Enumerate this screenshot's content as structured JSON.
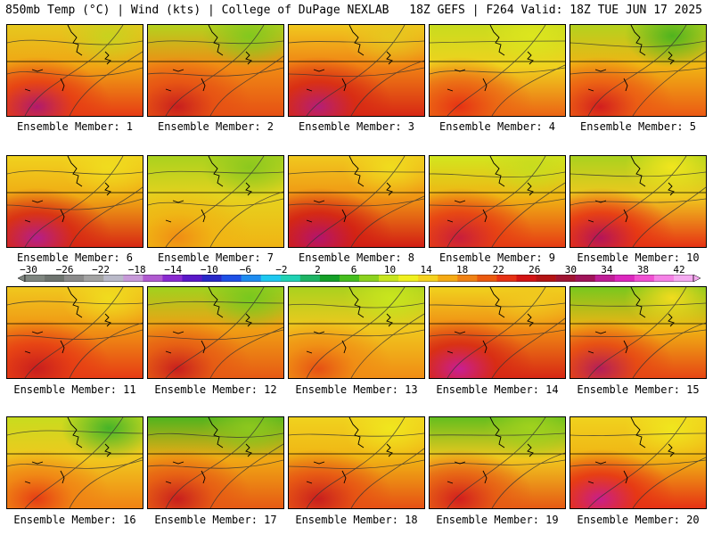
{
  "header": {
    "left": "850mb Temp (°C) | Wind (kts) | College of DuPage NEXLAB",
    "right": "18Z GEFS | F264 Valid: 18Z TUE JUN 17 2025"
  },
  "colorbar": {
    "labels": [
      "−30",
      "−26",
      "−22",
      "−18",
      "−14",
      "−10",
      "−6",
      "−2",
      "2",
      "6",
      "10",
      "14",
      "18",
      "22",
      "26",
      "30",
      "34",
      "38",
      "42"
    ],
    "colors": [
      "#7f8680",
      "#6e746f",
      "#8b8b8b",
      "#a3a3a3",
      "#b9b9c8",
      "#c79ad9",
      "#b05ad0",
      "#8a2bd0",
      "#5a18c8",
      "#2828c8",
      "#1e50e6",
      "#1e8cf0",
      "#1ec8f0",
      "#20d2b4",
      "#1eb464",
      "#14a028",
      "#46be1e",
      "#8cd21e",
      "#c8e61e",
      "#f0f01e",
      "#f5d21e",
      "#f5aa14",
      "#f08214",
      "#eb5a0f",
      "#e63214",
      "#d21414",
      "#b41414",
      "#a01432",
      "#a0145a",
      "#be1e96",
      "#dc28be",
      "#f050d2",
      "#f582e6",
      "#f5aaf0"
    ]
  },
  "panels": [
    {
      "caption": "Ensemble Member: 1",
      "bg": "#f0a514",
      "north": "#e6c81e",
      "south": "#e63c14",
      "hot": "#b01a6e",
      "cool": "#c8d21e"
    },
    {
      "caption": "Ensemble Member: 2",
      "bg": "#f08c14",
      "north": "#b4d21e",
      "south": "#e65014",
      "hot": "#c81e1e",
      "cool": "#82c81e"
    },
    {
      "caption": "Ensemble Member: 3",
      "bg": "#f08214",
      "north": "#f0c81e",
      "south": "#d72814",
      "hot": "#b41e78",
      "cool": "#e6c81e"
    },
    {
      "caption": "Ensemble Member: 4",
      "bg": "#f0d21e",
      "north": "#c8dc1e",
      "south": "#eb6414",
      "hot": "#e63214",
      "cool": "#dce61e"
    },
    {
      "caption": "Ensemble Member: 5",
      "bg": "#f0b414",
      "north": "#b4d21e",
      "south": "#eb5a14",
      "hot": "#d21e1e",
      "cool": "#50b41e"
    },
    {
      "caption": "Ensemble Member: 6",
      "bg": "#f0aa14",
      "north": "#f0d21e",
      "south": "#d72814",
      "hot": "#b41e8c",
      "cool": "#f0dc1e"
    },
    {
      "caption": "Ensemble Member: 7",
      "bg": "#e6d21e",
      "north": "#aad21e",
      "south": "#f0b414",
      "hot": "#f08c14",
      "cool": "#8cc81e"
    },
    {
      "caption": "Ensemble Member: 8",
      "bg": "#f09614",
      "north": "#f0c81e",
      "south": "#d21e14",
      "hot": "#b4146e",
      "cool": "#f0dc1e"
    },
    {
      "caption": "Ensemble Member: 9",
      "bg": "#f0b414",
      "north": "#d2e61e",
      "south": "#e63c14",
      "hot": "#c81e3c",
      "cool": "#c8dc1e"
    },
    {
      "caption": "Ensemble Member: 10",
      "bg": "#f0c81e",
      "north": "#aad21e",
      "south": "#e63214",
      "hot": "#b4145a",
      "cool": "#f0e61e"
    },
    {
      "caption": "Ensemble Member: 11",
      "bg": "#f09614",
      "north": "#f0c81e",
      "south": "#e63c14",
      "hot": "#c81e1e",
      "cool": "#f0dc1e"
    },
    {
      "caption": "Ensemble Member: 12",
      "bg": "#f0a014",
      "north": "#a0d21e",
      "south": "#e65a14",
      "hot": "#c81e1e",
      "cool": "#78c81e"
    },
    {
      "caption": "Ensemble Member: 13",
      "bg": "#f0c81e",
      "north": "#aad21e",
      "south": "#f08c14",
      "hot": "#e65014",
      "cool": "#c8e61e"
    },
    {
      "caption": "Ensemble Member: 14",
      "bg": "#f08c14",
      "north": "#f0d21e",
      "south": "#d72814",
      "hot": "#c81e96",
      "cool": "#f0c81e"
    },
    {
      "caption": "Ensemble Member: 15",
      "bg": "#f0b414",
      "north": "#78c81e",
      "south": "#e64614",
      "hot": "#b41e5a",
      "cool": "#f0dc1e"
    },
    {
      "caption": "Ensemble Member: 16",
      "bg": "#f0c81e",
      "north": "#c8dc1e",
      "south": "#f08214",
      "hot": "#e63c14",
      "cool": "#46b428"
    },
    {
      "caption": "Ensemble Member: 17",
      "bg": "#f0aa14",
      "north": "#50b41e",
      "south": "#e65a14",
      "hot": "#c81e1e",
      "cool": "#8cc81e"
    },
    {
      "caption": "Ensemble Member: 18",
      "bg": "#f0b414",
      "north": "#f0d21e",
      "south": "#e65014",
      "hot": "#c81e1e",
      "cool": "#f0e61e"
    },
    {
      "caption": "Ensemble Member: 19",
      "bg": "#f0c81e",
      "north": "#64be1e",
      "south": "#e65a14",
      "hot": "#d21e1e",
      "cool": "#a0d21e"
    },
    {
      "caption": "Ensemble Member: 20",
      "bg": "#f0b414",
      "north": "#f0d21e",
      "south": "#e63214",
      "hot": "#c81e8c",
      "cool": "#f0e61e"
    }
  ]
}
